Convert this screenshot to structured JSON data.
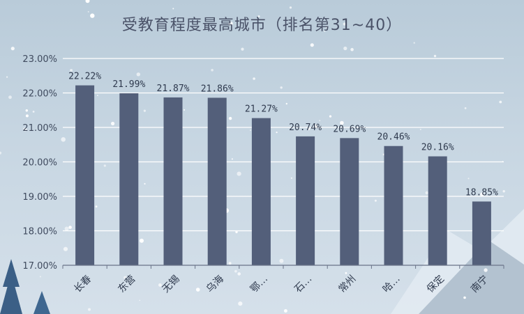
{
  "title": "受教育程度最高城市（排名第31~40）",
  "colors": {
    "bar": "#535f7a",
    "gridline": "#ffffff",
    "axis": "#6a7388",
    "text": "#3f4a5e"
  },
  "chart_data": {
    "type": "bar",
    "title": "受教育程度最高城市（排名第31~40）",
    "xlabel": "",
    "ylabel": "",
    "categories": [
      "长春",
      "东营",
      "无锡",
      "乌海",
      "鄂…",
      "石…",
      "常州",
      "哈…",
      "保定",
      "南宁"
    ],
    "values": [
      22.22,
      21.99,
      21.87,
      21.86,
      21.27,
      20.74,
      20.69,
      20.46,
      20.16,
      18.85
    ],
    "value_labels": [
      "22.22%",
      "21.99%",
      "21.87%",
      "21.86%",
      "21.27%",
      "20.74%",
      "20.69%",
      "20.46%",
      "20.16%",
      "18.85%"
    ],
    "ylim": [
      17,
      23
    ],
    "yticks": [
      17,
      18,
      19,
      20,
      21,
      22,
      23
    ],
    "ytick_labels": [
      "17.00%",
      "18.00%",
      "19.00%",
      "20.00%",
      "21.00%",
      "22.00%",
      "23.00%"
    ],
    "grid": true,
    "legend": "none"
  }
}
